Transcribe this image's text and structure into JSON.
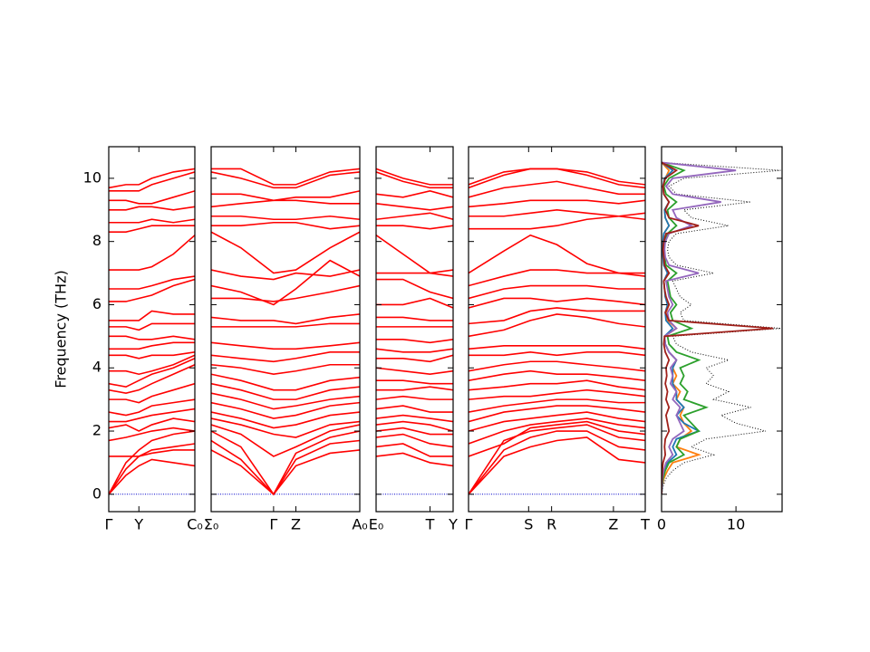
{
  "chart_data": [
    {
      "type": "band",
      "ylabel": "Frequency (THz)",
      "color": "#ff0000",
      "zero_line_color": "#0000cc",
      "xlim": [
        0,
        1
      ],
      "ylim": [
        -0.55,
        11
      ],
      "yticks": [
        0,
        2,
        4,
        6,
        8,
        10
      ],
      "xticks": [
        {
          "value": 0,
          "label": "Γ"
        },
        {
          "value": 0.35,
          "label": "Y"
        },
        {
          "value": 1,
          "label": "C₀"
        }
      ],
      "x": [
        0,
        0.2,
        0.35,
        0.5,
        0.75,
        1.0
      ],
      "bands": [
        [
          0,
          0.6,
          0.9,
          1.1,
          1.0,
          0.9
        ],
        [
          0,
          0.8,
          1.2,
          1.4,
          1.5,
          1.6
        ],
        [
          0,
          1.0,
          1.4,
          1.7,
          1.9,
          2.0
        ],
        [
          1.2,
          1.2,
          1.2,
          1.3,
          1.4,
          1.4
        ],
        [
          1.7,
          1.8,
          1.9,
          2.0,
          2.1,
          2.0
        ],
        [
          2.1,
          2.2,
          2.0,
          2.2,
          2.4,
          2.3
        ],
        [
          2.3,
          2.3,
          2.4,
          2.5,
          2.6,
          2.7
        ],
        [
          2.6,
          2.5,
          2.6,
          2.8,
          2.9,
          3.0
        ],
        [
          3.0,
          3.0,
          2.9,
          3.1,
          3.3,
          3.5
        ],
        [
          3.3,
          3.2,
          3.3,
          3.5,
          3.8,
          4.1
        ],
        [
          3.5,
          3.4,
          3.6,
          3.8,
          4.0,
          4.3
        ],
        [
          3.9,
          3.9,
          3.8,
          3.9,
          4.1,
          4.4
        ],
        [
          4.4,
          4.4,
          4.3,
          4.4,
          4.4,
          4.5
        ],
        [
          4.6,
          4.6,
          4.6,
          4.7,
          4.8,
          4.8
        ],
        [
          5.0,
          5.0,
          4.9,
          4.9,
          5.0,
          4.9
        ],
        [
          5.3,
          5.3,
          5.2,
          5.4,
          5.4,
          5.4
        ],
        [
          5.5,
          5.5,
          5.5,
          5.8,
          5.7,
          5.7
        ],
        [
          6.1,
          6.1,
          6.2,
          6.3,
          6.6,
          6.8
        ],
        [
          6.5,
          6.5,
          6.5,
          6.6,
          6.8,
          6.9
        ],
        [
          7.1,
          7.1,
          7.1,
          7.2,
          7.6,
          8.2
        ],
        [
          8.3,
          8.3,
          8.4,
          8.5,
          8.5,
          8.5
        ],
        [
          8.6,
          8.6,
          8.6,
          8.7,
          8.6,
          8.7
        ],
        [
          9.0,
          9.0,
          9.1,
          9.1,
          9.0,
          9.1
        ],
        [
          9.3,
          9.3,
          9.2,
          9.2,
          9.4,
          9.6
        ],
        [
          9.6,
          9.6,
          9.6,
          9.8,
          10.0,
          10.2
        ],
        [
          9.7,
          9.8,
          9.8,
          10.0,
          10.2,
          10.3
        ]
      ]
    },
    {
      "type": "band",
      "color": "#ff0000",
      "zero_line_color": "#0000cc",
      "xlim": [
        0,
        1
      ],
      "ylim": [
        -0.55,
        11
      ],
      "yticks": [
        0,
        2,
        4,
        6,
        8,
        10
      ],
      "xticks": [
        {
          "value": 0,
          "label": "Σ₀"
        },
        {
          "value": 0.42,
          "label": "Γ"
        },
        {
          "value": 0.57,
          "label": "Z"
        },
        {
          "value": 1,
          "label": "A₀"
        }
      ],
      "x": [
        0,
        0.2,
        0.42,
        0.57,
        0.8,
        1.0
      ],
      "bands": [
        [
          1.4,
          0.9,
          0,
          0.9,
          1.3,
          1.4
        ],
        [
          1.7,
          1.1,
          0,
          1.1,
          1.6,
          1.7
        ],
        [
          2.0,
          1.5,
          0,
          1.3,
          1.8,
          2.0
        ],
        [
          2.2,
          1.9,
          1.2,
          1.5,
          2.0,
          2.2
        ],
        [
          2.4,
          2.2,
          1.9,
          1.8,
          2.2,
          2.3
        ],
        [
          2.6,
          2.4,
          2.1,
          2.2,
          2.5,
          2.6
        ],
        [
          2.9,
          2.7,
          2.4,
          2.5,
          2.8,
          2.9
        ],
        [
          3.2,
          3.0,
          2.7,
          2.8,
          3.0,
          3.1
        ],
        [
          3.5,
          3.3,
          3.0,
          3.0,
          3.3,
          3.4
        ],
        [
          3.8,
          3.6,
          3.3,
          3.3,
          3.6,
          3.7
        ],
        [
          4.1,
          4.0,
          3.8,
          3.9,
          4.1,
          4.1
        ],
        [
          4.4,
          4.3,
          4.2,
          4.3,
          4.5,
          4.5
        ],
        [
          4.8,
          4.7,
          4.6,
          4.6,
          4.7,
          4.8
        ],
        [
          5.3,
          5.3,
          5.3,
          5.3,
          5.4,
          5.4
        ],
        [
          5.6,
          5.5,
          5.5,
          5.4,
          5.6,
          5.7
        ],
        [
          6.2,
          6.2,
          6.1,
          6.2,
          6.4,
          6.6
        ],
        [
          6.6,
          6.4,
          6.0,
          6.5,
          7.4,
          6.9
        ],
        [
          7.1,
          6.9,
          6.8,
          7.0,
          6.9,
          7.1
        ],
        [
          8.3,
          7.8,
          7.0,
          7.1,
          7.8,
          8.3
        ],
        [
          8.5,
          8.5,
          8.6,
          8.6,
          8.4,
          8.5
        ],
        [
          8.8,
          8.8,
          8.7,
          8.7,
          8.8,
          8.7
        ],
        [
          9.1,
          9.2,
          9.3,
          9.3,
          9.2,
          9.2
        ],
        [
          9.5,
          9.5,
          9.3,
          9.4,
          9.4,
          9.6
        ],
        [
          10.2,
          10.0,
          9.7,
          9.7,
          10.1,
          10.2
        ],
        [
          10.3,
          10.3,
          9.8,
          9.8,
          10.2,
          10.3
        ]
      ]
    },
    {
      "type": "band",
      "color": "#ff0000",
      "zero_line_color": "#0000cc",
      "xlim": [
        0,
        1
      ],
      "ylim": [
        -0.55,
        11
      ],
      "yticks": [
        0,
        2,
        4,
        6,
        8,
        10
      ],
      "xticks": [
        {
          "value": 0,
          "label": "E₀"
        },
        {
          "value": 0.7,
          "label": "T"
        },
        {
          "value": 1,
          "label": "Y"
        }
      ],
      "x": [
        0,
        0.35,
        0.7,
        1.0
      ],
      "bands": [
        [
          1.2,
          1.3,
          1.0,
          0.9
        ],
        [
          1.5,
          1.6,
          1.2,
          1.2
        ],
        [
          1.8,
          1.9,
          1.6,
          1.5
        ],
        [
          2.0,
          2.1,
          1.9,
          1.9
        ],
        [
          2.2,
          2.3,
          2.2,
          2.0
        ],
        [
          2.4,
          2.5,
          2.4,
          2.3
        ],
        [
          2.7,
          2.8,
          2.6,
          2.6
        ],
        [
          3.0,
          3.1,
          3.0,
          3.0
        ],
        [
          3.3,
          3.3,
          3.4,
          3.3
        ],
        [
          3.6,
          3.6,
          3.5,
          3.5
        ],
        [
          4.0,
          3.9,
          3.8,
          3.9
        ],
        [
          4.3,
          4.3,
          4.2,
          4.4
        ],
        [
          4.6,
          4.5,
          4.5,
          4.6
        ],
        [
          4.9,
          4.9,
          4.8,
          4.9
        ],
        [
          5.3,
          5.3,
          5.3,
          5.3
        ],
        [
          5.6,
          5.6,
          5.5,
          5.5
        ],
        [
          6.0,
          6.0,
          6.2,
          5.9
        ],
        [
          6.8,
          6.8,
          6.4,
          6.2
        ],
        [
          7.0,
          7.0,
          7.0,
          7.1
        ],
        [
          8.2,
          7.6,
          7.0,
          6.9
        ],
        [
          8.5,
          8.5,
          8.4,
          8.5
        ],
        [
          8.7,
          8.8,
          8.9,
          8.7
        ],
        [
          9.2,
          9.1,
          9.0,
          9.1
        ],
        [
          9.5,
          9.4,
          9.6,
          9.4
        ],
        [
          10.2,
          9.9,
          9.7,
          9.7
        ],
        [
          10.3,
          10.0,
          9.8,
          9.8
        ]
      ]
    },
    {
      "type": "band",
      "color": "#ff0000",
      "zero_line_color": "#0000cc",
      "xlim": [
        0,
        1
      ],
      "ylim": [
        -0.55,
        11
      ],
      "yticks": [
        0,
        2,
        4,
        6,
        8,
        10
      ],
      "xticks": [
        {
          "value": 0,
          "label": "Γ"
        },
        {
          "value": 0.34,
          "label": "S"
        },
        {
          "value": 0.47,
          "label": "R"
        },
        {
          "value": 0.82,
          "label": "Z"
        },
        {
          "value": 1,
          "label": "T"
        }
      ],
      "x": [
        0,
        0.2,
        0.35,
        0.5,
        0.67,
        0.85,
        1.0
      ],
      "bands": [
        [
          0,
          1.2,
          1.5,
          1.7,
          1.8,
          1.1,
          1.0
        ],
        [
          0,
          1.4,
          1.8,
          2.0,
          2.0,
          1.5,
          1.4
        ],
        [
          0,
          1.7,
          2.0,
          2.1,
          2.2,
          1.8,
          1.7
        ],
        [
          1.2,
          1.6,
          2.1,
          2.2,
          2.3,
          2.0,
          1.9
        ],
        [
          1.6,
          2.0,
          2.2,
          2.3,
          2.4,
          2.2,
          2.1
        ],
        [
          2.0,
          2.3,
          2.4,
          2.5,
          2.6,
          2.4,
          2.3
        ],
        [
          2.3,
          2.6,
          2.7,
          2.8,
          2.8,
          2.7,
          2.6
        ],
        [
          2.6,
          2.8,
          2.9,
          3.0,
          3.0,
          2.9,
          2.9
        ],
        [
          3.0,
          3.1,
          3.1,
          3.2,
          3.3,
          3.2,
          3.1
        ],
        [
          3.3,
          3.4,
          3.5,
          3.5,
          3.6,
          3.4,
          3.3
        ],
        [
          3.6,
          3.8,
          3.9,
          3.8,
          3.8,
          3.7,
          3.6
        ],
        [
          3.9,
          4.1,
          4.2,
          4.2,
          4.1,
          4.0,
          3.9
        ],
        [
          4.4,
          4.4,
          4.5,
          4.4,
          4.5,
          4.5,
          4.4
        ],
        [
          4.6,
          4.7,
          4.7,
          4.7,
          4.7,
          4.7,
          4.6
        ],
        [
          5.0,
          5.2,
          5.5,
          5.7,
          5.6,
          5.4,
          5.3
        ],
        [
          5.4,
          5.5,
          5.8,
          5.9,
          5.8,
          5.8,
          5.8
        ],
        [
          5.9,
          6.2,
          6.2,
          6.1,
          6.2,
          6.1,
          6.0
        ],
        [
          6.2,
          6.5,
          6.6,
          6.6,
          6.6,
          6.5,
          6.5
        ],
        [
          6.6,
          6.9,
          7.1,
          7.1,
          7.0,
          7.0,
          7.0
        ],
        [
          7.0,
          7.7,
          8.2,
          7.9,
          7.3,
          7.0,
          6.9
        ],
        [
          8.4,
          8.4,
          8.4,
          8.5,
          8.7,
          8.8,
          8.9
        ],
        [
          8.8,
          8.8,
          8.9,
          9.0,
          8.9,
          8.8,
          8.7
        ],
        [
          9.1,
          9.2,
          9.3,
          9.3,
          9.3,
          9.2,
          9.3
        ],
        [
          9.4,
          9.7,
          9.8,
          9.9,
          9.7,
          9.5,
          9.5
        ],
        [
          9.7,
          10.1,
          10.3,
          10.3,
          10.2,
          9.9,
          9.8
        ],
        [
          9.8,
          10.2,
          10.3,
          10.3,
          10.1,
          9.8,
          9.7
        ]
      ]
    },
    {
      "type": "dos",
      "xlim": [
        0,
        16.2
      ],
      "xticks": [
        0,
        10
      ],
      "ylim": [
        -0.55,
        11
      ],
      "yticks": [
        0,
        2,
        4,
        6,
        8,
        10
      ],
      "frequency": [
        0,
        0.25,
        0.5,
        0.75,
        1,
        1.25,
        1.5,
        1.75,
        2,
        2.25,
        2.5,
        2.75,
        3,
        3.25,
        3.5,
        3.75,
        4,
        4.25,
        4.5,
        4.75,
        5,
        5.25,
        5.5,
        5.75,
        6,
        6.25,
        6.5,
        6.75,
        7,
        7.25,
        7.5,
        7.75,
        8,
        8.25,
        8.5,
        8.75,
        9,
        9.25,
        9.5,
        9.75,
        10,
        10.25,
        10.5
      ],
      "series": [
        {
          "color": "#000000",
          "dash": "dotted",
          "values": [
            0,
            0.2,
            0.6,
            1.5,
            3,
            7,
            4,
            6,
            14,
            10,
            8,
            12,
            7,
            9,
            6,
            7,
            6,
            9,
            4,
            2,
            1.5,
            16,
            3,
            2.5,
            4,
            2.5,
            2,
            1.5,
            7,
            2,
            1,
            0.8,
            1,
            2,
            9,
            4,
            3,
            12,
            2,
            1,
            3,
            16,
            0
          ]
        },
        {
          "color": "#ff7f0e",
          "values": [
            0,
            0.1,
            0.3,
            0.8,
            1.5,
            5,
            2,
            2.5,
            4,
            3,
            2.5,
            3,
            2,
            2.5,
            1.5,
            2,
            1.5,
            2,
            1,
            0.5,
            0.4,
            2,
            0.8,
            0.6,
            1,
            0.5,
            0.4,
            0.3,
            1,
            0.3,
            0.2,
            0.1,
            0.2,
            0.3,
            1,
            0.5,
            0.4,
            1,
            0.3,
            0.2,
            0.5,
            1,
            0
          ]
        },
        {
          "color": "#1f77b4",
          "values": [
            0,
            0.1,
            0.2,
            0.4,
            0.8,
            2,
            1.5,
            2,
            5,
            3,
            2,
            3,
            2,
            2,
            1.5,
            1.5,
            1.5,
            2,
            1,
            0.5,
            0.4,
            1.5,
            0.6,
            0.5,
            0.8,
            0.5,
            0.4,
            0.3,
            0.8,
            0.3,
            0.2,
            0.1,
            0.2,
            0.3,
            1,
            0.5,
            0.4,
            1,
            0.3,
            0.2,
            0.4,
            1.5,
            0
          ]
        },
        {
          "color": "#2ca02c",
          "values": [
            0,
            0.05,
            0.2,
            0.5,
            1,
            3,
            2,
            2.5,
            5,
            4,
            3,
            6,
            3,
            3.5,
            2.5,
            3,
            2.5,
            5,
            2,
            1,
            0.8,
            4,
            1.5,
            1.2,
            2,
            1.2,
            1,
            0.8,
            2,
            0.6,
            0.4,
            0.3,
            0.4,
            0.8,
            2,
            1,
            0.8,
            2,
            0.6,
            0.3,
            1,
            3,
            0
          ]
        },
        {
          "color": "#9467bd",
          "values": [
            0,
            0.05,
            0.1,
            0.3,
            0.6,
            1.5,
            1,
            1.5,
            3,
            2.5,
            2,
            2.5,
            1.5,
            2,
            1.2,
            1.5,
            1.2,
            2,
            1,
            0.5,
            0.4,
            2,
            1,
            0.8,
            1.5,
            1,
            0.8,
            0.6,
            5,
            1,
            0.5,
            0.4,
            0.5,
            1,
            4,
            2,
            1.5,
            8,
            1.5,
            0.6,
            1.5,
            10,
            0
          ]
        },
        {
          "color": "#a0201a",
          "values": [
            0,
            0,
            0.05,
            0.1,
            0.2,
            0.5,
            0.4,
            0.5,
            1,
            0.8,
            0.6,
            1,
            0.6,
            0.8,
            0.5,
            0.7,
            0.6,
            1,
            0.5,
            0.3,
            0.4,
            15,
            1,
            0.5,
            1,
            0.6,
            0.4,
            0.3,
            1,
            0.4,
            0.3,
            0.2,
            0.3,
            0.6,
            5,
            1,
            0.5,
            1,
            0.3,
            0.2,
            0.5,
            2,
            0
          ]
        }
      ]
    }
  ]
}
